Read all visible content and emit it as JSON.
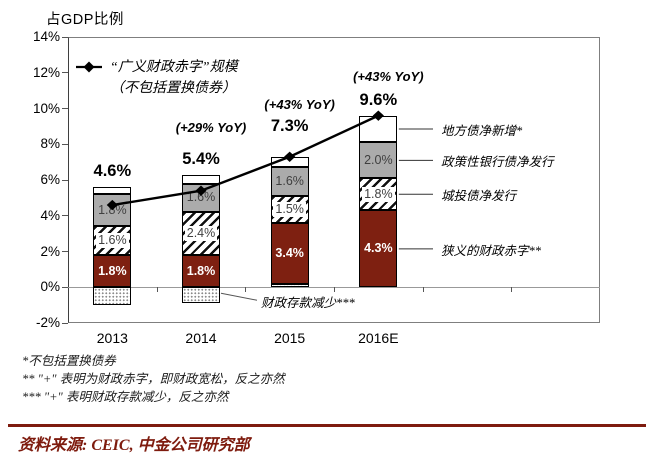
{
  "title": "占GDP比例",
  "legend": {
    "marker": "diamond-line-marker",
    "line1": "“广义财政赤字”规模",
    "line2": "（不包括置换债券）"
  },
  "chart_data": {
    "type": "bar",
    "subtype": "stacked-bars-with-line-overlay",
    "categories": [
      "2013",
      "2014",
      "2015",
      "2016E"
    ],
    "series": [
      {
        "name": "财政存款减少***",
        "pattern": "dotted",
        "values": [
          -1.0,
          -0.9,
          0.2,
          0
        ],
        "labels": [
          "",
          "",
          "",
          ""
        ]
      },
      {
        "name": "狭义的财政赤字**",
        "pattern": "maroon",
        "values": [
          1.8,
          1.8,
          3.4,
          4.3
        ],
        "labels": [
          "1.8%",
          "1.8%",
          "3.4%",
          "4.3%"
        ]
      },
      {
        "name": "城投债净发行",
        "pattern": "hatch",
        "values": [
          1.6,
          2.4,
          1.5,
          1.8
        ],
        "labels": [
          "1.6%",
          "2.4%",
          "1.5%",
          "1.8%"
        ]
      },
      {
        "name": "政策性银行债净发行",
        "pattern": "gray",
        "values": [
          1.8,
          1.6,
          1.6,
          2.0
        ],
        "labels": [
          "1.8%",
          "1.6%",
          "1.6%",
          "2.0%"
        ]
      },
      {
        "name": "地方债净新增*",
        "pattern": "white",
        "values": [
          0.4,
          0.5,
          0.6,
          1.5
        ],
        "labels": [
          "",
          "",
          "",
          ""
        ]
      }
    ],
    "line": {
      "name": "“广义财政赤字”规模（不包括置换债券）",
      "values": [
        4.6,
        5.4,
        7.3,
        9.6
      ],
      "point_labels": [
        "4.6%",
        "5.4%",
        "7.3%",
        "9.6%"
      ]
    },
    "yoy_annotations": [
      "",
      "(+29% YoY)",
      "(+43% YoY)",
      "(+43% YoY)"
    ],
    "ylabel": "占GDP比例",
    "ylim": [
      -2,
      14
    ],
    "ytick_step": 2,
    "ytick_suffix": "%",
    "grid": "zero-line-only",
    "legend_position": "top-left-inside"
  },
  "callouts": {
    "right": [
      {
        "label": "地方债净新增*",
        "series_index": 4
      },
      {
        "label": "政策性银行债净发行",
        "series_index": 3
      },
      {
        "label": "城投债净发行",
        "series_index": 2
      },
      {
        "label": "狭义的财政赤字**",
        "series_index": 1
      }
    ],
    "bottom": {
      "label": "财政存款减少***"
    }
  },
  "footnotes": [
    "*不包括置换债券",
    "** \"+\" 表明为财政赤字，即财政宽松，反之亦然",
    "*** \"+\" 表明财政存款减少，反之亦然"
  ],
  "source": "资料来源: CEIC, 中金公司研究部",
  "colors": {
    "maroon": "#7e2011",
    "gray": "#ababab",
    "axis": "#555555",
    "zero_line": "#999999",
    "source_red": "#7e1b0e",
    "label_dark": "#3f3f3f"
  }
}
